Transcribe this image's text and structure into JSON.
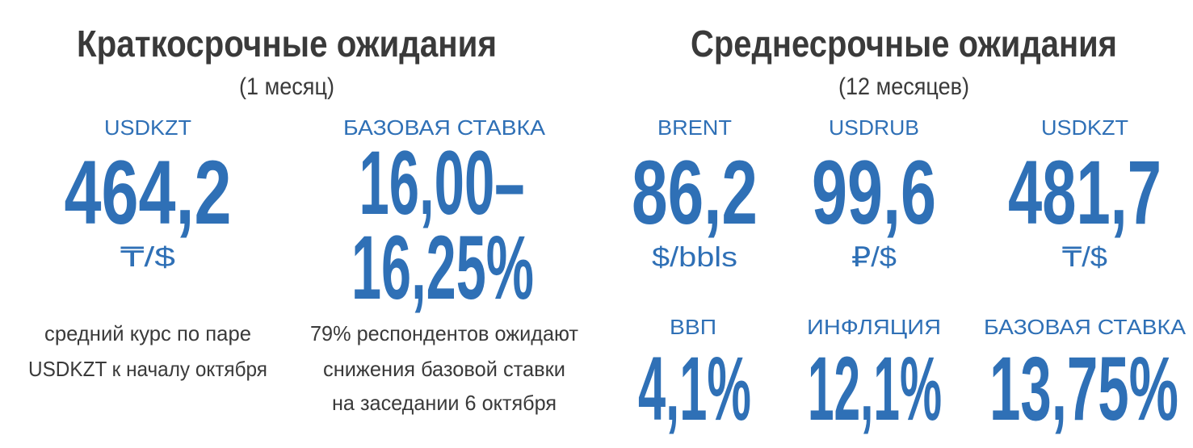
{
  "short_term": {
    "title": "Краткосрочные ожидания",
    "subtitle": "(1 месяц)",
    "items": [
      {
        "label": "USDKZT",
        "value": [
          "464,2"
        ],
        "unit": "₸/$",
        "note": [
          "средний курс по паре",
          "USDKZT к началу октября"
        ]
      },
      {
        "label": "БАЗОВАЯ СТАВКА",
        "value": [
          "16,00–",
          "16,25%"
        ],
        "note": [
          "79% респондентов ожидают",
          "снижения базовой ставки",
          "на заседании 6 октября"
        ]
      }
    ]
  },
  "medium_term": {
    "title": "Среднесрочные ожидания",
    "subtitle": "(12 месяцев)",
    "items": [
      {
        "label": "BRENT",
        "value": "86,2",
        "unit": "$/bbls"
      },
      {
        "label": "USDRUB",
        "value": "99,6",
        "unit": "₽/$"
      },
      {
        "label": "USDKZT",
        "value": "481,7",
        "unit": "₸/$"
      },
      {
        "label": "ВВП",
        "value": "4,1%"
      },
      {
        "label": "ИНФЛЯЦИЯ",
        "value": "12,1%"
      },
      {
        "label": "БАЗОВАЯ СТАВКА",
        "value": "13,75%"
      }
    ]
  }
}
